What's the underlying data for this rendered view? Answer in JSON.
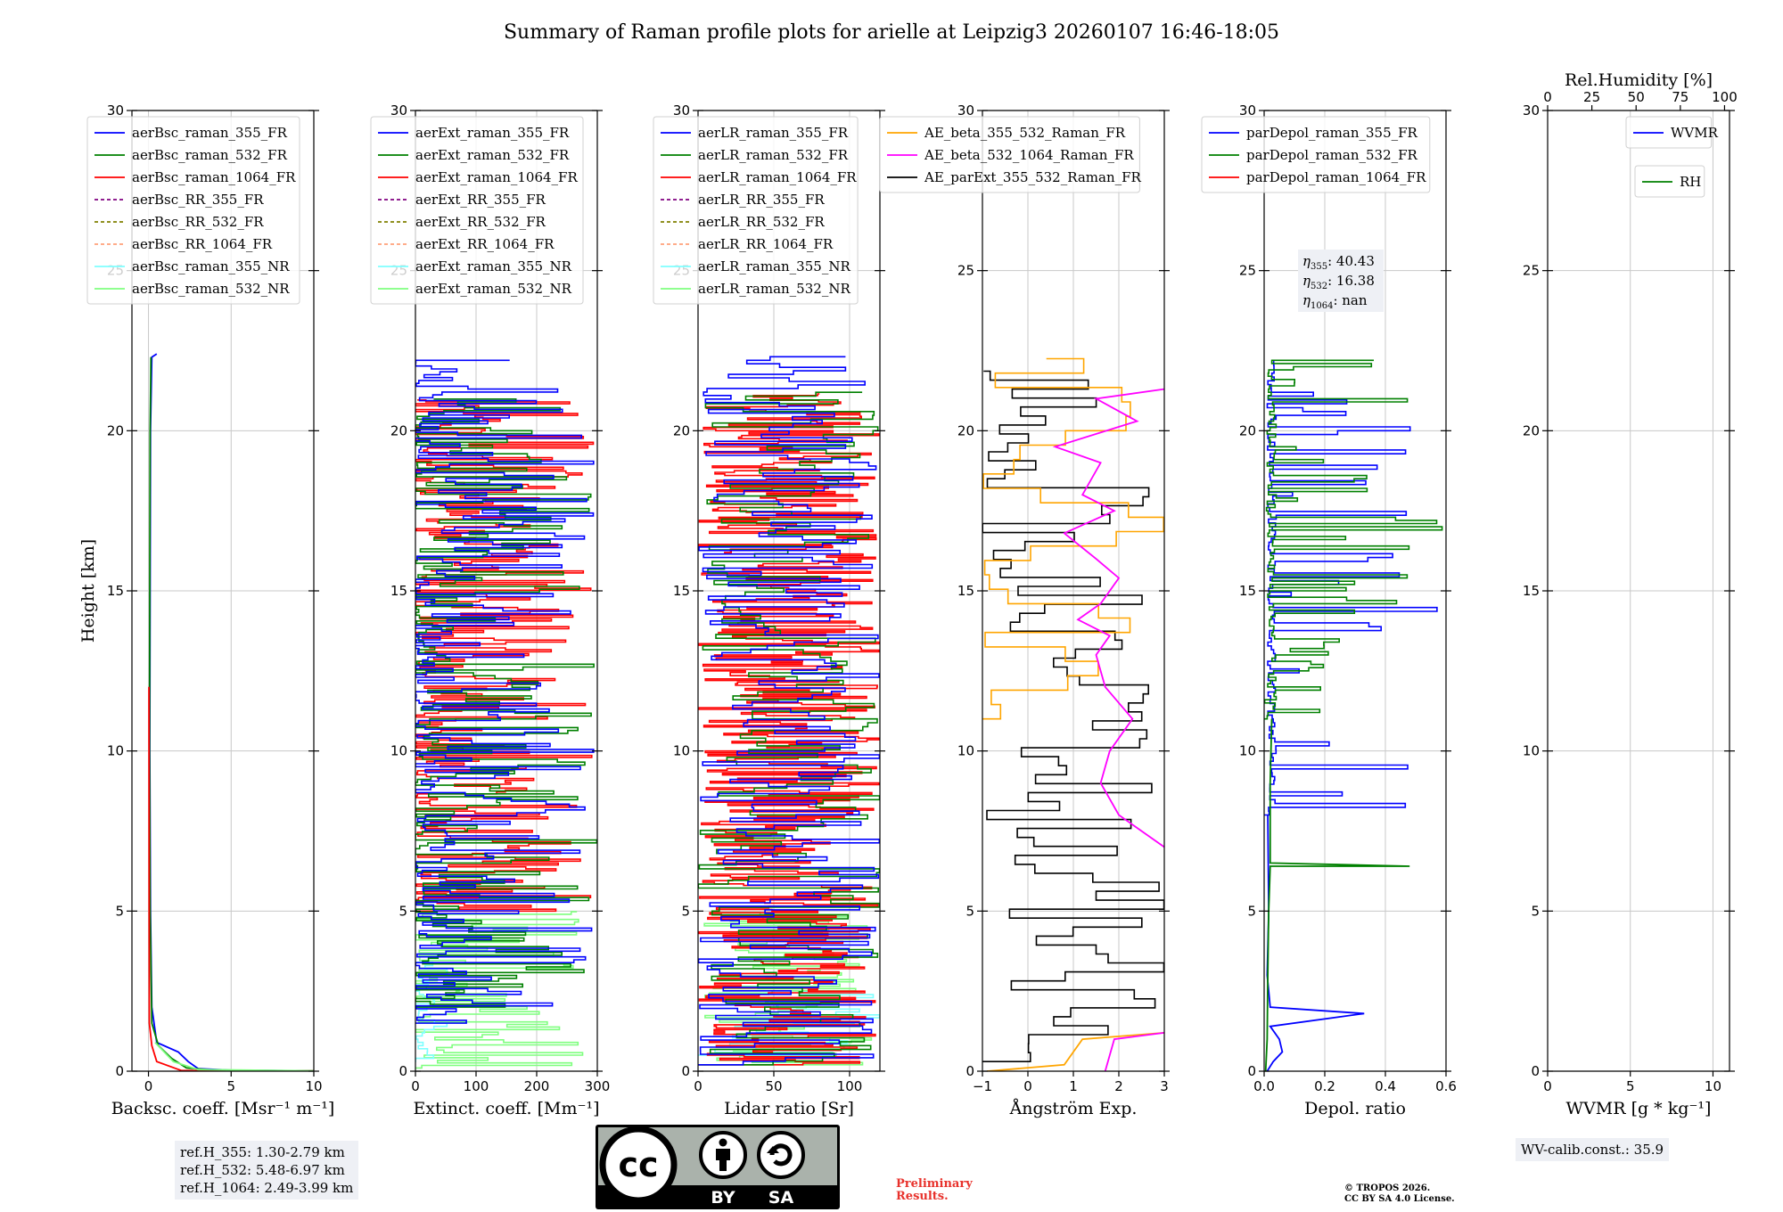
{
  "title": "Summary of Raman profile plots for arielle at Leipzig3 20260107 16:46-18:05",
  "colors": {
    "blue": "#0000ff",
    "green": "#008000",
    "red": "#ff0000",
    "purple": "#800080",
    "olive": "#808000",
    "salmon": "#ffa07a",
    "cyan": "#7fffff",
    "lightgreen": "#7fff7f",
    "orange": "#ffa500",
    "magenta": "#ff00ff",
    "black": "#000000",
    "grid": "#c8c8c8",
    "boxbg": "#eef0f5",
    "prelim": "#e8322c"
  },
  "chart_data": [
    {
      "type": "line",
      "xlabel": "Backsc. coeff. [Msr⁻¹ m⁻¹]",
      "ylabel": "Height [km]",
      "xlim": [
        -1,
        10
      ],
      "ylim": [
        0,
        30
      ],
      "xticks": [
        0,
        5,
        10
      ],
      "yticks": [
        0,
        5,
        10,
        15,
        20,
        25,
        30
      ],
      "legend": [
        {
          "label": "aerBsc_raman_355_FR",
          "color": "blue",
          "dash": false
        },
        {
          "label": "aerBsc_raman_532_FR",
          "color": "green",
          "dash": false
        },
        {
          "label": "aerBsc_raman_1064_FR",
          "color": "red",
          "dash": false
        },
        {
          "label": "aerBsc_RR_355_FR",
          "color": "purple",
          "dash": true
        },
        {
          "label": "aerBsc_RR_532_FR",
          "color": "olive",
          "dash": true
        },
        {
          "label": "aerBsc_RR_1064_FR",
          "color": "salmon",
          "dash": true
        },
        {
          "label": "aerBsc_raman_355_NR",
          "color": "cyan",
          "dash": false
        },
        {
          "label": "aerBsc_raman_532_NR",
          "color": "lightgreen",
          "dash": false
        }
      ],
      "series": [
        {
          "name": "aerBsc_raman_355_FR",
          "color": "blue",
          "points": [
            [
              10,
              0.01
            ],
            [
              5,
              0.03
            ],
            [
              3,
              0.08
            ],
            [
              2.4,
              0.3
            ],
            [
              1.8,
              0.6
            ],
            [
              0.5,
              0.9
            ],
            [
              0.2,
              2
            ],
            [
              0.12,
              5
            ],
            [
              0.08,
              10
            ],
            [
              0.1,
              15
            ],
            [
              0.12,
              20
            ],
            [
              0.2,
              22.3
            ],
            [
              0.5,
              22.4
            ]
          ]
        },
        {
          "name": "aerBsc_raman_532_FR",
          "color": "green",
          "points": [
            [
              10,
              0.01
            ],
            [
              4,
              0.03
            ],
            [
              2.3,
              0.1
            ],
            [
              1.4,
              0.4
            ],
            [
              0.6,
              0.8
            ],
            [
              0.2,
              1.5
            ],
            [
              0.1,
              5
            ],
            [
              0.06,
              10
            ],
            [
              0.08,
              15
            ],
            [
              0.1,
              20
            ],
            [
              0.15,
              22.3
            ]
          ]
        },
        {
          "name": "aerBsc_raman_1064_FR",
          "color": "red",
          "points": [
            [
              10,
              0.01
            ],
            [
              2,
              0.02
            ],
            [
              0.5,
              0.3
            ],
            [
              0.2,
              0.8
            ],
            [
              0.05,
              1.5
            ],
            [
              0.04,
              5
            ],
            [
              0.03,
              12
            ]
          ]
        },
        {
          "name": "aerBsc_raman_532_NR",
          "color": "lightgreen",
          "points": [
            [
              10,
              0.01
            ],
            [
              3,
              0.05
            ],
            [
              1.5,
              0.3
            ],
            [
              0.4,
              0.9
            ]
          ]
        }
      ]
    },
    {
      "type": "line",
      "xlabel": "Extinct. coeff. [Mm⁻¹]",
      "xlim": [
        0,
        300
      ],
      "ylim": [
        0,
        30
      ],
      "xticks": [
        0,
        100,
        200,
        300
      ],
      "yticks": [
        0,
        5,
        10,
        15,
        20,
        25,
        30
      ],
      "legend": [
        {
          "label": "aerExt_raman_355_FR",
          "color": "blue",
          "dash": false
        },
        {
          "label": "aerExt_raman_532_FR",
          "color": "green",
          "dash": false
        },
        {
          "label": "aerExt_raman_1064_FR",
          "color": "red",
          "dash": false
        },
        {
          "label": "aerExt_RR_355_FR",
          "color": "purple",
          "dash": true
        },
        {
          "label": "aerExt_RR_532_FR",
          "color": "olive",
          "dash": true
        },
        {
          "label": "aerExt_RR_1064_FR",
          "color": "salmon",
          "dash": true
        },
        {
          "label": "aerExt_raman_355_NR",
          "color": "cyan",
          "dash": false
        },
        {
          "label": "aerExt_raman_532_NR",
          "color": "lightgreen",
          "dash": false
        }
      ],
      "profiles": [
        {
          "name": "aerExt_raman_532_NR",
          "color": "lightgreen",
          "y0": 0.1,
          "y1": 5.0,
          "step": 0.08,
          "base": 0,
          "amp": 300,
          "seed": 3
        },
        {
          "name": "aerExt_raman_355_NR",
          "color": "cyan",
          "y0": 0.3,
          "y1": 3.5,
          "step": 0.1,
          "base": 0,
          "amp": 60,
          "seed": 4
        },
        {
          "name": "aerExt_raman_1064_FR",
          "color": "red",
          "y0": 5.0,
          "y1": 21.0,
          "step": 0.06,
          "base": 0,
          "amp": 300,
          "seed": 5
        },
        {
          "name": "aerExt_raman_532_FR",
          "color": "green",
          "y0": 2.0,
          "y1": 21.0,
          "step": 0.09,
          "base": 0,
          "amp": 300,
          "seed": 6
        },
        {
          "name": "aerExt_raman_355_FR",
          "color": "blue",
          "y0": 1.5,
          "y1": 22.2,
          "step": 0.09,
          "base": 0,
          "amp": 300,
          "seed": 7
        }
      ]
    },
    {
      "type": "line",
      "xlabel": "Lidar ratio [Sr]",
      "xlim": [
        0,
        120
      ],
      "ylim": [
        0,
        30
      ],
      "xticks": [
        0,
        50,
        100
      ],
      "yticks": [
        0,
        5,
        10,
        15,
        20,
        25,
        30
      ],
      "legend": [
        {
          "label": "aerLR_raman_355_FR",
          "color": "blue",
          "dash": false
        },
        {
          "label": "aerLR_raman_532_FR",
          "color": "green",
          "dash": false
        },
        {
          "label": "aerLR_raman_1064_FR",
          "color": "red",
          "dash": false
        },
        {
          "label": "aerLR_RR_355_FR",
          "color": "purple",
          "dash": true
        },
        {
          "label": "aerLR_RR_532_FR",
          "color": "olive",
          "dash": true
        },
        {
          "label": "aerLR_RR_1064_FR",
          "color": "salmon",
          "dash": true
        },
        {
          "label": "aerLR_raman_355_NR",
          "color": "cyan",
          "dash": false
        },
        {
          "label": "aerLR_raman_532_NR",
          "color": "lightgreen",
          "dash": false
        }
      ],
      "profiles": [
        {
          "name": "aerLR_raman_532_NR",
          "color": "lightgreen",
          "y0": 0.2,
          "y1": 5.0,
          "step": 0.07,
          "base": 0,
          "amp": 120,
          "seed": 11,
          "full": true
        },
        {
          "name": "aerLR_raman_355_NR",
          "color": "cyan",
          "y0": 0.5,
          "y1": 2.5,
          "step": 0.09,
          "base": 0,
          "amp": 120,
          "seed": 12,
          "full": true
        },
        {
          "name": "aerLR_raman_1064_FR",
          "color": "red",
          "y0": 0.2,
          "y1": 21.2,
          "step": 0.05,
          "base": 0,
          "amp": 120,
          "seed": 13,
          "full": true
        },
        {
          "name": "aerLR_raman_532_FR",
          "color": "green",
          "y0": 0.2,
          "y1": 21.2,
          "step": 0.12,
          "base": 0,
          "amp": 120,
          "seed": 14,
          "full": true
        },
        {
          "name": "aerLR_raman_355_FR",
          "color": "blue",
          "y0": 0.2,
          "y1": 22.4,
          "step": 0.11,
          "base": 0,
          "amp": 120,
          "seed": 15,
          "full": true
        }
      ]
    },
    {
      "type": "line",
      "xlabel": "Ångström Exp.",
      "xlim": [
        -1,
        3
      ],
      "ylim": [
        0,
        30
      ],
      "xticks": [
        -1,
        0,
        1,
        2,
        3
      ],
      "yticks": [
        0,
        5,
        10,
        15,
        20,
        25,
        30
      ],
      "legend": [
        {
          "label": "AE_beta_355_532_Raman_FR",
          "color": "orange",
          "dash": false
        },
        {
          "label": "AE_beta_532_1064_Raman_FR",
          "color": "magenta",
          "dash": false
        },
        {
          "label": "AE_parExt_355_532_Raman_FR",
          "color": "black",
          "dash": false
        }
      ],
      "series": [
        {
          "name": "AE_beta_355_532_Raman_FR",
          "color": "orange",
          "points": [
            [
              -0.9,
              0
            ],
            [
              0.8,
              0.2
            ],
            [
              1.0,
              0.6
            ],
            [
              1.2,
              1.0
            ],
            [
              3,
              1.2
            ]
          ]
        },
        {
          "name": "AE_beta_532_1064_Raman_FR",
          "color": "magenta",
          "points": [
            [
              1.7,
              0
            ],
            [
              1.8,
              0.5
            ],
            [
              1.9,
              1
            ],
            [
              3,
              1.2
            ]
          ]
        },
        {
          "name": "AE_beta_532_1064_Raman_FR_upper",
          "color": "magenta",
          "points": [
            [
              3,
              7
            ],
            [
              2.6,
              7.4
            ],
            [
              2.0,
              8
            ],
            [
              1.6,
              9
            ],
            [
              1.8,
              10
            ],
            [
              2.3,
              11
            ],
            [
              1.7,
              12
            ],
            [
              1.5,
              13
            ],
            [
              1.8,
              13.6
            ],
            [
              1.1,
              14.1
            ],
            [
              1.6,
              14.6
            ],
            [
              2.0,
              15.4
            ],
            [
              1.5,
              16
            ],
            [
              0.8,
              16.8
            ],
            [
              1.9,
              17.5
            ],
            [
              1.2,
              18
            ],
            [
              1.6,
              19
            ],
            [
              0.6,
              19.5
            ],
            [
              2.4,
              20.3
            ],
            [
              1.5,
              21
            ],
            [
              3,
              21.3
            ]
          ]
        }
      ],
      "profiles": [
        {
          "name": "AE_parExt_355_532_Raman_FR",
          "color": "black",
          "y0": 0.3,
          "y1": 22,
          "step": 0.28,
          "base": -1,
          "amp": 4,
          "seed": 21,
          "full": true
        },
        {
          "name": "AE_beta_355_532_Raman_FR_upper",
          "color": "orange",
          "y0": 11.0,
          "y1": 22.3,
          "step": 0.45,
          "base": -1,
          "amp": 4,
          "seed": 22,
          "full": true
        }
      ]
    },
    {
      "type": "line",
      "xlabel": "Depol. ratio",
      "xlim": [
        0,
        0.6
      ],
      "ylim": [
        0,
        30
      ],
      "xticks": [
        0.0,
        0.2,
        0.4,
        0.6
      ],
      "xtick_labels": [
        "0.0",
        "0.2",
        "0.4",
        "0.6"
      ],
      "yticks": [
        0,
        5,
        10,
        15,
        20,
        25,
        30
      ],
      "legend": [
        {
          "label": "parDepol_raman_355_FR",
          "color": "blue",
          "dash": false
        },
        {
          "label": "parDepol_raman_532_FR",
          "color": "green",
          "dash": false
        },
        {
          "label": "parDepol_raman_1064_FR",
          "color": "red",
          "dash": false
        }
      ],
      "annotation": {
        "lines": [
          {
            "sym": "η",
            "sub": "355",
            "val": ": 40.43"
          },
          {
            "sym": "η",
            "sub": "532",
            "val": ": 16.38"
          },
          {
            "sym": "η",
            "sub": "1064",
            "val": ": nan"
          }
        ]
      },
      "series": [
        {
          "name": "parDepol_raman_355_FR_low",
          "color": "blue",
          "points": [
            [
              0.01,
              0
            ],
            [
              0.03,
              0.3
            ],
            [
              0.06,
              0.6
            ],
            [
              0.05,
              1.0
            ],
            [
              0.02,
              1.4
            ],
            [
              0.33,
              1.8
            ],
            [
              0.02,
              2.0
            ],
            [
              0.01,
              3
            ],
            [
              0.015,
              5
            ],
            [
              0.012,
              8
            ]
          ]
        },
        {
          "name": "parDepol_raman_532_FR_low",
          "color": "green",
          "points": [
            [
              0.005,
              0
            ],
            [
              0.01,
              1
            ],
            [
              0.012,
              3
            ],
            [
              0.015,
              5
            ],
            [
              0.02,
              6.4
            ],
            [
              0.48,
              6.4
            ],
            [
              0.02,
              6.5
            ],
            [
              0.02,
              9
            ],
            [
              0.025,
              11
            ]
          ]
        }
      ],
      "profiles": [
        {
          "name": "parDepol_raman_355_FR",
          "color": "blue",
          "y0": 8,
          "y1": 22.2,
          "step": 0.12,
          "base": 0,
          "amp": 0.6,
          "seed": 31,
          "spiky": true
        },
        {
          "name": "parDepol_raman_532_FR",
          "color": "green",
          "y0": 11,
          "y1": 22.3,
          "step": 0.1,
          "base": 0,
          "amp": 0.6,
          "seed": 32,
          "spiky": true
        }
      ]
    },
    {
      "type": "line",
      "xlabel": "WVMR [g * kg⁻¹]",
      "toplabel": "Rel.Humidity [%]",
      "xlim": [
        0,
        11
      ],
      "ylim": [
        0,
        30
      ],
      "xticks": [
        0,
        5,
        10
      ],
      "topticks": [
        0,
        25,
        50,
        75,
        100
      ],
      "yticks": [
        0,
        5,
        10,
        15,
        20,
        25,
        30
      ],
      "legend": [
        {
          "label": "WVMR",
          "color": "blue",
          "dash": false
        }
      ],
      "legend2": [
        {
          "label": "RH",
          "color": "green",
          "dash": false
        }
      ],
      "series": []
    }
  ],
  "infoboxes": {
    "refh": [
      "ref.H_355: 1.30-2.79 km",
      "ref.H_532: 5.48-6.97 km",
      "ref.H_1064: 2.49-3.99 km"
    ],
    "wv": "WV-calib.const.: 35.9"
  },
  "license": {
    "cc": "cc",
    "by": "BY",
    "sa": "SA"
  },
  "preliminary": [
    "Preliminary",
    "Results."
  ],
  "copyright": [
    "© TROPOS 2026.",
    "CC BY SA 4.0 License."
  ]
}
